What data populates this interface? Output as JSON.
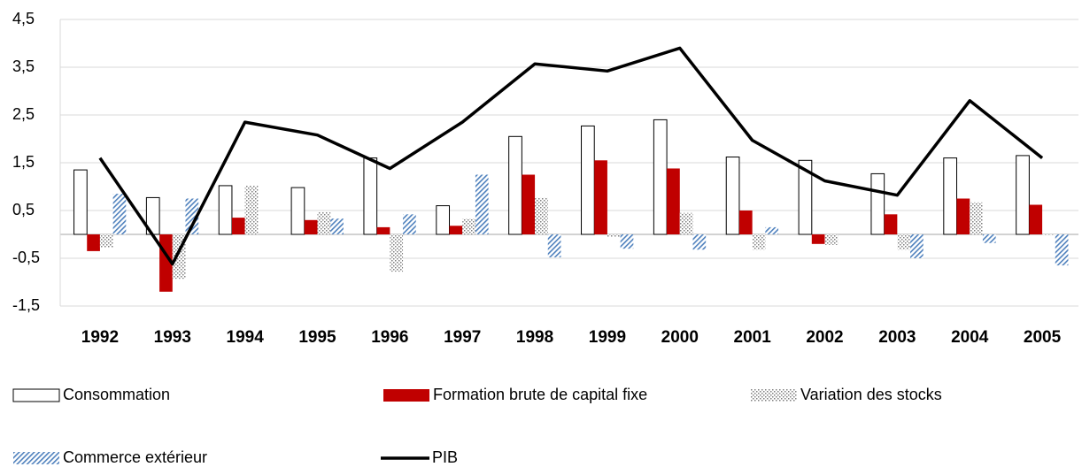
{
  "chart_data": {
    "type": "bar",
    "categories": [
      "1992",
      "1993",
      "1994",
      "1995",
      "1996",
      "1997",
      "1998",
      "1999",
      "2000",
      "2001",
      "2002",
      "2003",
      "2004",
      "2005"
    ],
    "series": [
      {
        "name": "Consommation",
        "color": "#ffffff",
        "values": [
          1.35,
          0.77,
          1.02,
          0.98,
          1.6,
          0.6,
          2.05,
          2.27,
          2.4,
          1.62,
          1.55,
          1.27,
          1.6,
          1.65
        ]
      },
      {
        "name": "Formation brute de capital fixe",
        "color": "#c00000",
        "values": [
          -0.35,
          -1.2,
          0.35,
          0.3,
          0.15,
          0.18,
          1.25,
          1.55,
          1.38,
          0.5,
          -0.2,
          0.42,
          0.75,
          0.62
        ]
      },
      {
        "name": "Variation des stocks",
        "color": "#7f7f7f",
        "pattern": "dots",
        "values": [
          -0.27,
          -0.93,
          1.02,
          0.47,
          -0.78,
          0.33,
          0.77,
          -0.05,
          0.45,
          -0.32,
          -0.22,
          -0.32,
          0.67,
          -0.02
        ]
      },
      {
        "name": "Commerce extérieur",
        "color": "#4f81bd",
        "pattern": "stripes",
        "values": [
          0.85,
          0.75,
          0,
          0.33,
          0.42,
          1.25,
          -0.48,
          -0.3,
          -0.32,
          0.15,
          0,
          -0.5,
          -0.18,
          -0.65
        ]
      },
      {
        "name": "PIB",
        "color": "#000000",
        "type": "line",
        "values": [
          1.6,
          -0.62,
          2.35,
          2.08,
          1.38,
          2.35,
          3.57,
          3.42,
          3.9,
          1.97,
          1.12,
          0.82,
          2.8,
          1.6
        ]
      }
    ],
    "ylim": [
      -1.5,
      4.5
    ],
    "yticks": [
      {
        "value": -1.5,
        "label": "-1,5"
      },
      {
        "value": -0.5,
        "label": "-0,5"
      },
      {
        "value": 0.5,
        "label": "0,5"
      },
      {
        "value": 1.5,
        "label": "1,5"
      },
      {
        "value": 2.5,
        "label": "2,5"
      },
      {
        "value": 3.5,
        "label": "3,5"
      },
      {
        "value": 4.5,
        "label": "4,5"
      }
    ],
    "grid": true
  }
}
